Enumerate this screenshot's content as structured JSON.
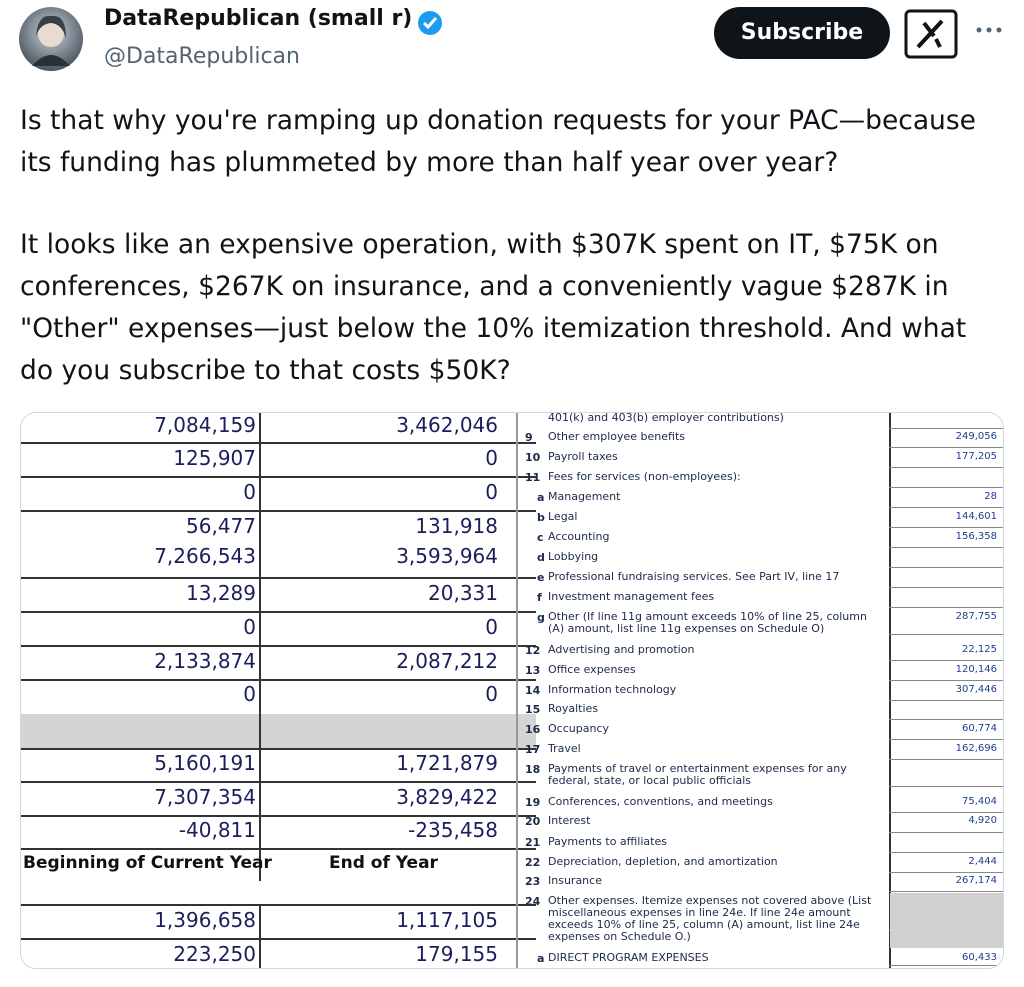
{
  "author": {
    "name": "DataRepublican (small r)",
    "handle": "@DataRepublican"
  },
  "subscribe": "Subscribe",
  "tweet": {
    "paragraphs": [
      [
        "Is that why you're ramping up donation requests for your PAC—because",
        "its funding has plummeted by more than half year over year?"
      ],
      [
        "It looks like an expensive operation, with $307K spent on IT, $75K on",
        "conferences, $267K on insurance, and a conveniently vague $287K in",
        "\"Other\" expenses—just below the 10% itemization threshold. And what",
        "do you subscribe to that costs $50K?"
      ]
    ]
  },
  "image": {
    "left_table": {
      "rows": [
        [
          "7,084,159",
          "3,462,046"
        ],
        [
          "125,907",
          "0"
        ],
        [
          "0",
          "0"
        ],
        [
          "56,477",
          "131,918"
        ],
        [
          "7,266,543",
          "3,593,964"
        ],
        [
          "13,289",
          "20,331"
        ],
        [
          "0",
          "0"
        ],
        [
          "2,133,874",
          "2,087,212"
        ],
        [
          "0",
          "0"
        ],
        [
          "5,160,191",
          "1,721,879"
        ],
        [
          "7,307,354",
          "3,829,422"
        ],
        [
          "-40,811",
          "-235,458"
        ]
      ],
      "header": [
        "Beginning of Current Year",
        "End of Year"
      ],
      "after_rows": [
        [
          "1,396,658",
          "1,117,105"
        ],
        [
          "223,250",
          "179,155"
        ]
      ]
    },
    "form": {
      "lines": [
        {
          "label": "401(k) and 403(b) employer contributions)"
        },
        {
          "number": "9",
          "label": "Other employee benefits",
          "amount": "249,056"
        },
        {
          "number": "10",
          "label": "Payroll taxes",
          "amount": "177,205"
        },
        {
          "number": "11",
          "label": "Fees for services (non-employees):"
        },
        {
          "number": "a",
          "label": "Management",
          "amount": "28"
        },
        {
          "number": "b",
          "label": "Legal",
          "amount": "144,601"
        },
        {
          "number": "c",
          "label": "Accounting",
          "amount": "156,358"
        },
        {
          "number": "d",
          "label": "Lobbying"
        },
        {
          "number": "e",
          "label": "Professional fundraising services. See Part IV, line 17"
        },
        {
          "number": "f",
          "label": "Investment management fees"
        },
        {
          "number": "g",
          "label": "Other (If line 11g amount exceeds 10% of line 25, column (A) amount, list line 11g expenses on Schedule O)",
          "amount": "287,755"
        },
        {
          "number": "12",
          "label": "Advertising and promotion",
          "amount": "22,125"
        },
        {
          "number": "13",
          "label": "Office expenses",
          "amount": "120,146"
        },
        {
          "number": "14",
          "label": "Information technology",
          "amount": "307,446"
        },
        {
          "number": "15",
          "label": "Royalties"
        },
        {
          "number": "16",
          "label": "Occupancy",
          "amount": "60,774"
        },
        {
          "number": "17",
          "label": "Travel",
          "amount": "162,696"
        },
        {
          "number": "18",
          "label": "Payments of travel or entertainment expenses for any federal, state, or local public officials"
        },
        {
          "number": "19",
          "label": "Conferences, conventions, and meetings",
          "amount": "75,404"
        },
        {
          "number": "20",
          "label": "Interest",
          "amount": "4,920"
        },
        {
          "number": "21",
          "label": "Payments to affiliates"
        },
        {
          "number": "22",
          "label": "Depreciation, depletion, and amortization",
          "amount": "2,444"
        },
        {
          "number": "23",
          "label": "Insurance",
          "amount": "267,174"
        },
        {
          "number": "24",
          "label": "Other expenses. Itemize expenses not covered above (List miscellaneous expenses in line 24e. If line 24e amount exceeds 10% of line 25, column (A) amount, list line 24e expenses on Schedule O.)"
        },
        {
          "number": "a",
          "label": "DIRECT PROGRAM EXPENSES",
          "amount": "60,433"
        }
      ]
    }
  }
}
